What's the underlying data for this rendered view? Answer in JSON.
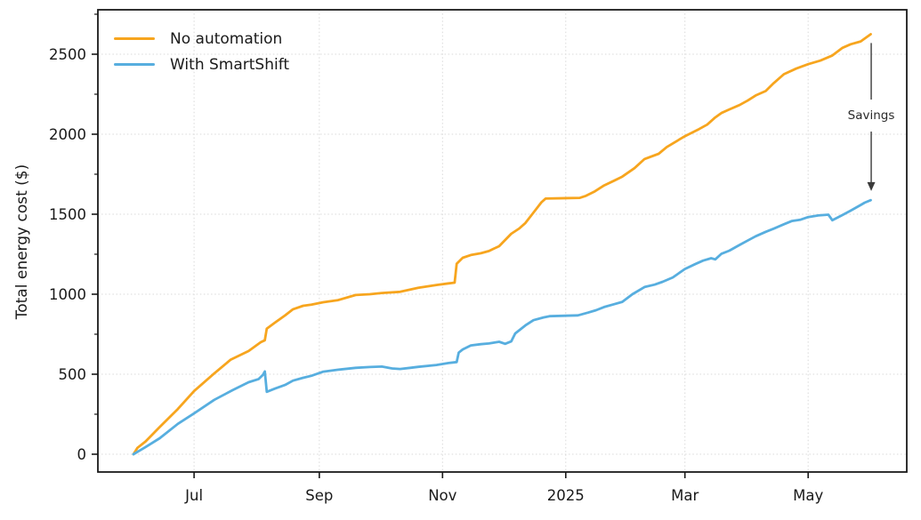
{
  "chart_data": {
    "type": "line",
    "title": "",
    "xlabel": "",
    "ylabel": "Total energy cost ($)",
    "x_unit": "days since 2024-06-01",
    "x_ticks": [
      {
        "day": 30,
        "label": "Jul"
      },
      {
        "day": 92,
        "label": "Sep"
      },
      {
        "day": 153,
        "label": "Nov"
      },
      {
        "day": 214,
        "label": "2025"
      },
      {
        "day": 273,
        "label": "Mar"
      },
      {
        "day": 334,
        "label": "May"
      }
    ],
    "y_ticks": [
      {
        "value": 0,
        "label": "0"
      },
      {
        "value": 500,
        "label": "500"
      },
      {
        "value": 1000,
        "label": "1000"
      },
      {
        "value": 1500,
        "label": "1500"
      },
      {
        "value": 2000,
        "label": "2000"
      },
      {
        "value": 2500,
        "label": "2500"
      }
    ],
    "y_minor_ticks": [
      250,
      750,
      1250,
      1750,
      2250,
      2750
    ],
    "ylim": [
      -110,
      2780
    ],
    "xlim_days": [
      -18,
      383
    ],
    "grid": "dotted light gray at major ticks, both axes",
    "legend_position": "upper left, no frame",
    "colors": {
      "axis": "#1a1a1a",
      "grid": "#d9d9d9",
      "tick_label": "#1a1a1a",
      "annotation": "#3a3a3a",
      "background": "#ffffff"
    },
    "series": [
      {
        "name": "No automation",
        "color": "#F7A51E",
        "points": [
          [
            0,
            0
          ],
          [
            2,
            40
          ],
          [
            6,
            80
          ],
          [
            13,
            170
          ],
          [
            22,
            283
          ],
          [
            30,
            395
          ],
          [
            40,
            505
          ],
          [
            48,
            590
          ],
          [
            57,
            645
          ],
          [
            63,
            700
          ],
          [
            65,
            712
          ],
          [
            66,
            785
          ],
          [
            70,
            822
          ],
          [
            75,
            867
          ],
          [
            79,
            906
          ],
          [
            84,
            928
          ],
          [
            88,
            935
          ],
          [
            94,
            950
          ],
          [
            101,
            962
          ],
          [
            110,
            995
          ],
          [
            117,
            1000
          ],
          [
            123,
            1008
          ],
          [
            132,
            1015
          ],
          [
            141,
            1040
          ],
          [
            150,
            1058
          ],
          [
            156,
            1068
          ],
          [
            159,
            1072
          ],
          [
            160,
            1190
          ],
          [
            163,
            1228
          ],
          [
            167,
            1245
          ],
          [
            172,
            1256
          ],
          [
            176,
            1270
          ],
          [
            178,
            1283
          ],
          [
            181,
            1300
          ],
          [
            187,
            1378
          ],
          [
            191,
            1411
          ],
          [
            194,
            1445
          ],
          [
            198,
            1510
          ],
          [
            202,
            1575
          ],
          [
            204,
            1598
          ],
          [
            221,
            1602
          ],
          [
            224,
            1615
          ],
          [
            228,
            1640
          ],
          [
            233,
            1680
          ],
          [
            238,
            1710
          ],
          [
            242,
            1735
          ],
          [
            248,
            1788
          ],
          [
            253,
            1845
          ],
          [
            260,
            1878
          ],
          [
            264,
            1920
          ],
          [
            273,
            1988
          ],
          [
            280,
            2032
          ],
          [
            284,
            2060
          ],
          [
            288,
            2105
          ],
          [
            291,
            2132
          ],
          [
            295,
            2155
          ],
          [
            300,
            2182
          ],
          [
            304,
            2210
          ],
          [
            308,
            2242
          ],
          [
            313,
            2270
          ],
          [
            317,
            2320
          ],
          [
            322,
            2375
          ],
          [
            328,
            2410
          ],
          [
            334,
            2438
          ],
          [
            340,
            2460
          ],
          [
            346,
            2492
          ],
          [
            351,
            2540
          ],
          [
            355,
            2562
          ],
          [
            360,
            2580
          ],
          [
            365,
            2625
          ]
        ]
      },
      {
        "name": "With SmartShift",
        "color": "#57AEDF",
        "points": [
          [
            0,
            0
          ],
          [
            6,
            45
          ],
          [
            13,
            100
          ],
          [
            22,
            190
          ],
          [
            30,
            255
          ],
          [
            40,
            340
          ],
          [
            49,
            400
          ],
          [
            57,
            450
          ],
          [
            62,
            470
          ],
          [
            64,
            495
          ],
          [
            65,
            517
          ],
          [
            66,
            390
          ],
          [
            70,
            410
          ],
          [
            75,
            433
          ],
          [
            79,
            460
          ],
          [
            84,
            478
          ],
          [
            88,
            490
          ],
          [
            94,
            516
          ],
          [
            101,
            528
          ],
          [
            110,
            540
          ],
          [
            117,
            545
          ],
          [
            123,
            548
          ],
          [
            128,
            536
          ],
          [
            132,
            533
          ],
          [
            137,
            540
          ],
          [
            141,
            546
          ],
          [
            150,
            558
          ],
          [
            156,
            570
          ],
          [
            160,
            576
          ],
          [
            161,
            635
          ],
          [
            163,
            655
          ],
          [
            167,
            680
          ],
          [
            172,
            688
          ],
          [
            176,
            692
          ],
          [
            181,
            703
          ],
          [
            184,
            690
          ],
          [
            187,
            705
          ],
          [
            189,
            755
          ],
          [
            194,
            805
          ],
          [
            198,
            838
          ],
          [
            203,
            855
          ],
          [
            206,
            863
          ],
          [
            220,
            868
          ],
          [
            225,
            885
          ],
          [
            229,
            900
          ],
          [
            233,
            920
          ],
          [
            238,
            938
          ],
          [
            242,
            952
          ],
          [
            247,
            1000
          ],
          [
            253,
            1045
          ],
          [
            258,
            1060
          ],
          [
            262,
            1078
          ],
          [
            267,
            1105
          ],
          [
            273,
            1158
          ],
          [
            278,
            1188
          ],
          [
            282,
            1210
          ],
          [
            286,
            1225
          ],
          [
            288,
            1218
          ],
          [
            291,
            1252
          ],
          [
            295,
            1272
          ],
          [
            300,
            1308
          ],
          [
            304,
            1335
          ],
          [
            308,
            1362
          ],
          [
            313,
            1390
          ],
          [
            317,
            1410
          ],
          [
            322,
            1437
          ],
          [
            326,
            1458
          ],
          [
            330,
            1465
          ],
          [
            334,
            1482
          ],
          [
            339,
            1492
          ],
          [
            344,
            1497
          ],
          [
            346,
            1462
          ],
          [
            351,
            1495
          ],
          [
            355,
            1522
          ],
          [
            360,
            1558
          ],
          [
            362,
            1572
          ],
          [
            365,
            1588
          ]
        ]
      }
    ],
    "annotation": {
      "text": "Savings",
      "at_day": 365,
      "arrow_from_value": 2570,
      "arrow_to_value": 1645
    }
  }
}
